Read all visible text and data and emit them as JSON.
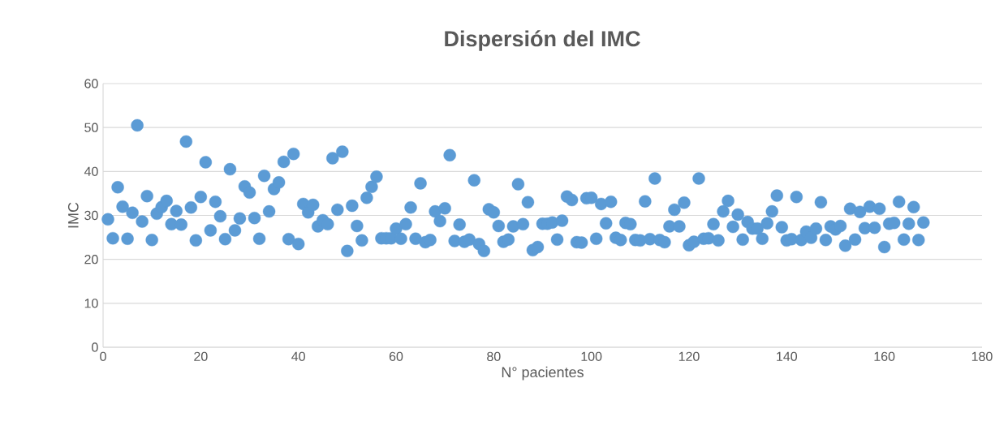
{
  "chart_data": {
    "type": "scatter",
    "title": "Dispersión del IMC",
    "xlabel": "N° pacientes",
    "ylabel": "IMC",
    "x": [
      1,
      2,
      3,
      4,
      5,
      6,
      7,
      8,
      9,
      10,
      11,
      12,
      13,
      14,
      15,
      16,
      17,
      18,
      19,
      20,
      21,
      22,
      23,
      24,
      25,
      26,
      27,
      28,
      29,
      30,
      31,
      32,
      33,
      34,
      35,
      36,
      37,
      38,
      39,
      40,
      41,
      42,
      43,
      44,
      45,
      46,
      47,
      48,
      49,
      50,
      51,
      52,
      53,
      54,
      55,
      56,
      57,
      58,
      59,
      60,
      61,
      62,
      63,
      64,
      65,
      66,
      67,
      68,
      69,
      70,
      71,
      72,
      73,
      74,
      75,
      76,
      77,
      78,
      79,
      80,
      81,
      82,
      83,
      84,
      85,
      86,
      87,
      88,
      89,
      90,
      91,
      92,
      93,
      94,
      95,
      96,
      97,
      98,
      99,
      100,
      101,
      102,
      103,
      104,
      105,
      106,
      107,
      108,
      109,
      110,
      111,
      112,
      113,
      114,
      115,
      116,
      117,
      118,
      119,
      120,
      121,
      122,
      123,
      124,
      125,
      126,
      127,
      128,
      129,
      130,
      131,
      132,
      133,
      134,
      135,
      136,
      137,
      138,
      139,
      140,
      141,
      142,
      143,
      144,
      145,
      146,
      147,
      148,
      149,
      150,
      151,
      152,
      153,
      154,
      155,
      156,
      157,
      158,
      159,
      160,
      161,
      162,
      163,
      164,
      165,
      166,
      167,
      168
    ],
    "values": [
      29.1,
      24.8,
      36.4,
      32.0,
      24.7,
      30.6,
      50.5,
      28.6,
      34.4,
      24.4,
      30.4,
      31.9,
      33.3,
      28.0,
      31.0,
      27.9,
      46.8,
      31.8,
      24.3,
      34.2,
      42.1,
      26.6,
      33.1,
      29.8,
      24.6,
      40.5,
      26.6,
      29.3,
      36.6,
      35.2,
      29.4,
      24.7,
      39.0,
      30.9,
      36.0,
      37.5,
      42.2,
      24.6,
      44.0,
      23.5,
      32.6,
      30.7,
      32.4,
      27.5,
      28.9,
      28.0,
      43.0,
      31.3,
      44.5,
      21.9,
      32.2,
      27.6,
      24.3,
      34.0,
      36.5,
      38.8,
      24.8,
      24.8,
      24.8,
      27.0,
      24.7,
      28.0,
      31.8,
      24.7,
      37.3,
      23.9,
      24.4,
      30.9,
      28.7,
      31.6,
      43.7,
      24.2,
      27.9,
      24.0,
      24.5,
      38.0,
      23.5,
      21.9,
      31.4,
      30.7,
      27.6,
      24.0,
      24.5,
      27.5,
      37.1,
      28.0,
      33.0,
      22.1,
      22.8,
      28.1,
      28.1,
      28.4,
      24.5,
      28.8,
      34.3,
      33.5,
      23.9,
      23.8,
      33.9,
      34.0,
      24.7,
      32.6,
      28.2,
      33.1,
      24.9,
      24.4,
      28.3,
      28.0,
      24.4,
      24.3,
      33.2,
      24.6,
      38.4,
      24.4,
      23.9,
      27.5,
      31.3,
      27.5,
      32.9,
      23.2,
      24.0,
      38.4,
      24.7,
      24.8,
      28.0,
      24.3,
      30.9,
      33.3,
      27.4,
      30.2,
      24.5,
      28.5,
      27.0,
      27.0,
      24.7,
      28.2,
      30.9,
      34.5,
      27.3,
      24.3,
      24.6,
      34.2,
      24.4,
      26.3,
      24.9,
      27.0,
      33.0,
      24.4,
      27.5,
      26.8,
      27.6,
      23.1,
      31.5,
      24.5,
      30.8,
      27.1,
      32.0,
      27.2,
      31.5,
      22.8,
      28.1,
      28.3,
      33.1,
      24.5,
      28.1,
      31.9,
      24.4,
      28.4
    ],
    "color": "#5b9bd5",
    "marker": "circle",
    "grid": "y",
    "xlim": [
      0,
      180
    ],
    "ylim": [
      0,
      60
    ],
    "xticks": [
      0,
      20,
      40,
      60,
      80,
      100,
      120,
      140,
      160,
      180
    ],
    "yticks": [
      0,
      10,
      20,
      30,
      40,
      50,
      60
    ]
  }
}
